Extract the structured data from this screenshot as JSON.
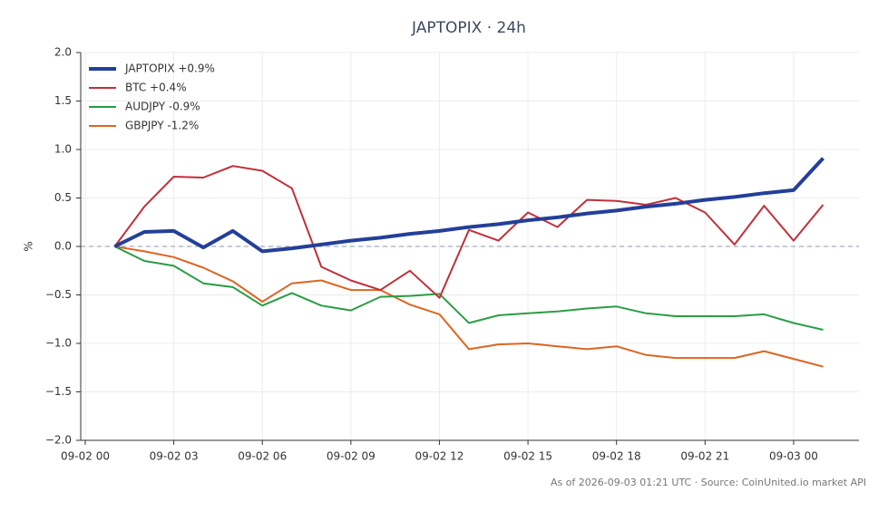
{
  "chart_data": {
    "type": "line",
    "title": "JAPTOPIX · 24h",
    "ylabel": "%",
    "footer": "As of 2026-09-03 01:21 UTC · Source: CoinUnited.io market API",
    "x": [
      "09-02 01",
      "09-02 02",
      "09-02 03",
      "09-02 04",
      "09-02 05",
      "09-02 06",
      "09-02 07",
      "09-02 08",
      "09-02 09",
      "09-02 10",
      "09-02 11",
      "09-02 12",
      "09-02 13",
      "09-02 14",
      "09-02 15",
      "09-02 16",
      "09-02 17",
      "09-02 18",
      "09-02 19",
      "09-02 20",
      "09-02 21",
      "09-02 22",
      "09-02 23",
      "09-03 00",
      "09-03 01"
    ],
    "series": [
      {
        "name": "JAPTOPIX +0.9%",
        "color": "#233f99",
        "line_width": 4,
        "values": [
          0,
          0.15,
          0.16,
          -0.01,
          0.16,
          -0.05,
          -0.02,
          0.02,
          0.06,
          0.09,
          0.13,
          0.16,
          0.2,
          0.23,
          0.27,
          0.3,
          0.34,
          0.37,
          0.41,
          0.44,
          0.48,
          0.51,
          0.55,
          0.58,
          0.91
        ]
      },
      {
        "name": "BTC +0.4%",
        "color": "#c0303a",
        "line_width": 2,
        "values": [
          0,
          0.41,
          0.72,
          0.71,
          0.83,
          0.78,
          0.6,
          -0.21,
          -0.35,
          -0.45,
          -0.25,
          -0.53,
          0.17,
          0.06,
          0.35,
          0.2,
          0.48,
          0.47,
          0.43,
          0.5,
          0.35,
          0.02,
          0.42,
          0.06,
          0.43
        ]
      },
      {
        "name": "AUDJPY -0.9%",
        "color": "#2a9d45",
        "line_width": 2,
        "values": [
          0,
          -0.15,
          -0.2,
          -0.38,
          -0.42,
          -0.61,
          -0.48,
          -0.61,
          -0.66,
          -0.52,
          -0.51,
          -0.49,
          -0.79,
          -0.71,
          -0.69,
          -0.67,
          -0.64,
          -0.62,
          -0.69,
          -0.72,
          -0.72,
          -0.72,
          -0.7,
          -0.79,
          -0.86
        ]
      },
      {
        "name": "GBPJPY -1.2%",
        "color": "#dd6522",
        "line_width": 2,
        "values": [
          0,
          -0.05,
          -0.11,
          -0.22,
          -0.36,
          -0.57,
          -0.38,
          -0.35,
          -0.45,
          -0.45,
          -0.6,
          -0.7,
          -1.06,
          -1.01,
          -1.0,
          -1.03,
          -1.06,
          -1.03,
          -1.12,
          -1.15,
          -1.15,
          -1.15,
          -1.08,
          -1.16,
          -1.24
        ]
      }
    ],
    "xlim": [
      "09-02 00",
      "09-03 02"
    ],
    "xticks": [
      "09-02 00",
      "09-02 03",
      "09-02 06",
      "09-02 09",
      "09-02 12",
      "09-02 15",
      "09-02 18",
      "09-02 21",
      "09-03 00"
    ],
    "ylim": [
      -2,
      2
    ],
    "yticks": [
      {
        "value": -2,
        "label": "−2.0"
      },
      {
        "value": -1.5,
        "label": "−1.5"
      },
      {
        "value": -1,
        "label": "−1.0"
      },
      {
        "value": -0.5,
        "label": "−0.5"
      },
      {
        "value": 0,
        "label": "0.0"
      },
      {
        "value": 0.5,
        "label": "0.5"
      },
      {
        "value": 1,
        "label": "1.0"
      },
      {
        "value": 1.5,
        "label": "1.5"
      },
      {
        "value": 2,
        "label": "2.0"
      }
    ],
    "grid": true,
    "zero_line": true,
    "legend": "upper left"
  }
}
